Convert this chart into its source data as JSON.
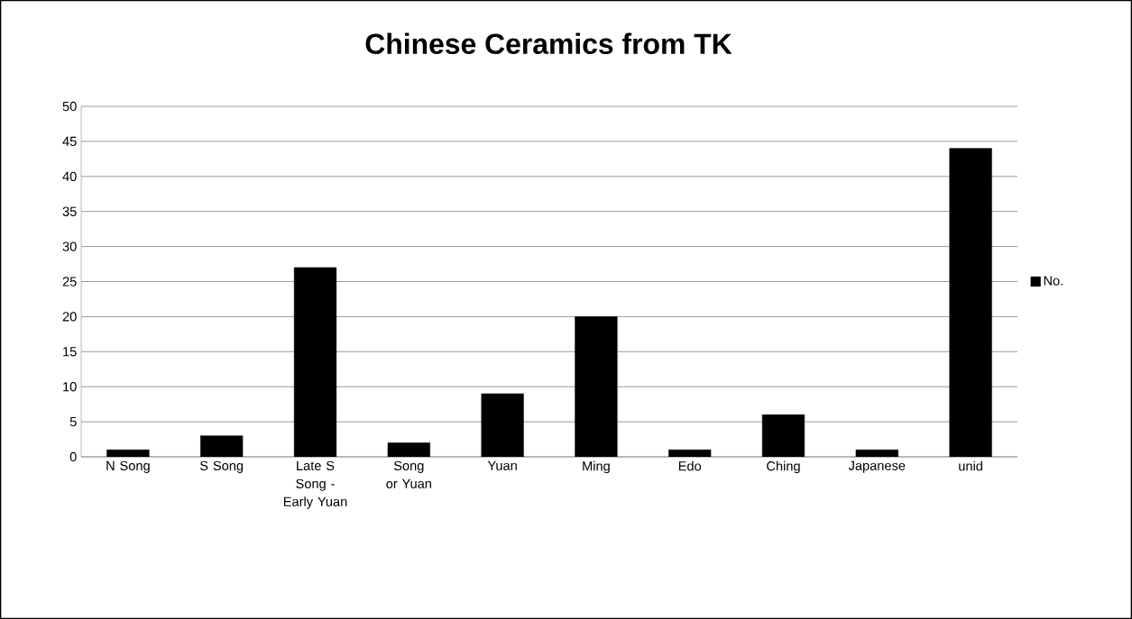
{
  "chart_data": {
    "type": "bar",
    "title": "Chinese Ceramics from TK",
    "categories": [
      "N Song",
      "S Song",
      "Late S Song - Early Yuan",
      "Song or Yuan",
      "Yuan",
      "Ming",
      "Edo",
      "Ching",
      "Japanese",
      "unid"
    ],
    "series": [
      {
        "name": "No.",
        "color": "#000000",
        "values": [
          1,
          3,
          27,
          2,
          9,
          20,
          1,
          6,
          1,
          44
        ]
      }
    ],
    "ylim": [
      0,
      50
    ],
    "yticks": [
      0,
      5,
      10,
      15,
      20,
      25,
      30,
      35,
      40,
      45,
      50
    ],
    "grid": "y",
    "legend": "right"
  }
}
